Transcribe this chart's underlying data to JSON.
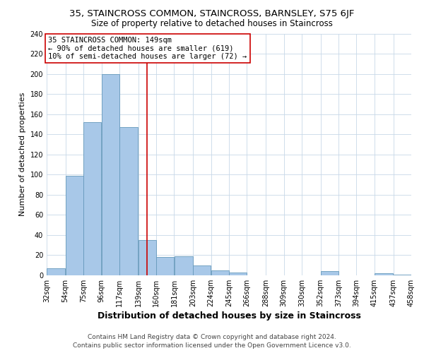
{
  "title": "35, STAINCROSS COMMON, STAINCROSS, BARNSLEY, S75 6JF",
  "subtitle": "Size of property relative to detached houses in Staincross",
  "xlabel": "Distribution of detached houses by size in Staincross",
  "ylabel": "Number of detached properties",
  "bar_left_edges": [
    32,
    54,
    75,
    96,
    117,
    139,
    160,
    181,
    203,
    224,
    245,
    266,
    288,
    309,
    330,
    352,
    373,
    394,
    415,
    437
  ],
  "bar_widths": [
    22,
    21,
    21,
    21,
    22,
    21,
    21,
    22,
    21,
    21,
    21,
    22,
    21,
    21,
    22,
    21,
    21,
    21,
    22,
    21
  ],
  "bar_heights": [
    7,
    99,
    152,
    200,
    147,
    35,
    18,
    19,
    10,
    5,
    3,
    0,
    0,
    0,
    0,
    4,
    0,
    0,
    2,
    1
  ],
  "tick_labels": [
    "32sqm",
    "54sqm",
    "75sqm",
    "96sqm",
    "117sqm",
    "139sqm",
    "160sqm",
    "181sqm",
    "203sqm",
    "224sqm",
    "245sqm",
    "266sqm",
    "288sqm",
    "309sqm",
    "330sqm",
    "352sqm",
    "373sqm",
    "394sqm",
    "415sqm",
    "437sqm",
    "458sqm"
  ],
  "bar_color": "#a8c8e8",
  "bar_edge_color": "#6699bb",
  "vline_x": 149,
  "vline_color": "#cc0000",
  "ylim": [
    0,
    240
  ],
  "yticks": [
    0,
    20,
    40,
    60,
    80,
    100,
    120,
    140,
    160,
    180,
    200,
    220,
    240
  ],
  "annotation_line1": "35 STAINCROSS COMMON: 149sqm",
  "annotation_line2": "← 90% of detached houses are smaller (619)",
  "annotation_line3": "10% of semi-detached houses are larger (72) →",
  "annotation_box_color": "#ffffff",
  "annotation_box_edge": "#cc0000",
  "footer_line1": "Contains HM Land Registry data © Crown copyright and database right 2024.",
  "footer_line2": "Contains public sector information licensed under the Open Government Licence v3.0.",
  "title_fontsize": 9.5,
  "subtitle_fontsize": 8.5,
  "xlabel_fontsize": 9,
  "ylabel_fontsize": 8,
  "tick_fontsize": 7,
  "annotation_fontsize": 7.5,
  "footer_fontsize": 6.5,
  "background_color": "#ffffff",
  "grid_color": "#c8d8e8"
}
